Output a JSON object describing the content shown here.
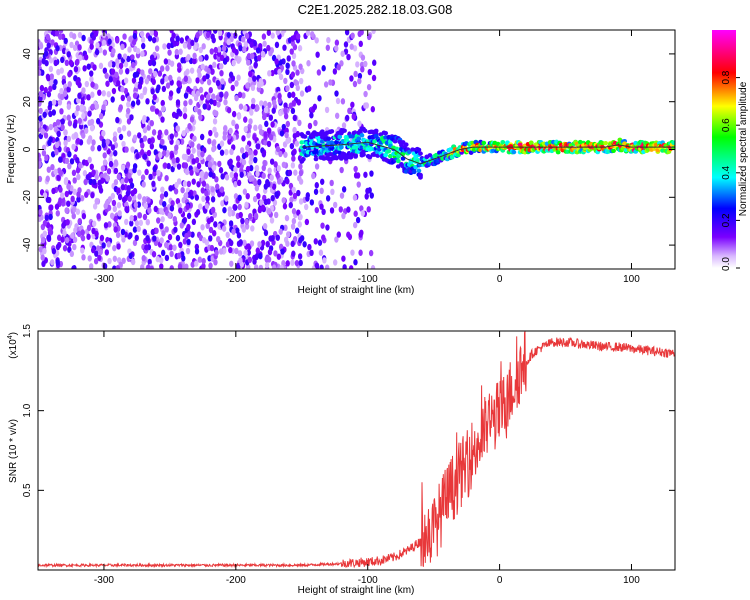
{
  "title": "C2E1.2025.282.18.03.G08",
  "chart_data": [
    {
      "type": "heatmap",
      "xlabel": "Height of straight line (km)",
      "ylabel": "Frequency (Hz)",
      "xlim": [
        -350,
        133
      ],
      "ylim": [
        -50,
        50
      ],
      "xticks": [
        -300,
        -200,
        -100,
        0,
        100
      ],
      "xtick_labels": [
        "-300",
        "-200",
        "-100",
        "0",
        "100"
      ],
      "yticks": [
        -40,
        -20,
        0,
        20,
        40
      ],
      "ytick_labels": [
        "-40",
        "-20",
        "0",
        "20",
        "40"
      ],
      "colorbar": {
        "label": "Normalized spectral amplitude",
        "range": [
          0,
          1
        ],
        "ticks": [
          0.0,
          0.2,
          0.4,
          0.6,
          0.8
        ],
        "tick_labels": [
          "0.0",
          "0.2",
          "0.4",
          "0.6",
          "0.8"
        ],
        "colors": [
          "#ffffff",
          "#7a00ff",
          "#0000ff",
          "#00ffff",
          "#00ff00",
          "#ffff00",
          "#ff0000",
          "#ff00ff"
        ]
      },
      "dominant_frequency_trace": {
        "x": [
          -150,
          -120,
          -100,
          -80,
          -70,
          -60,
          -50,
          -40,
          -30,
          -20,
          0,
          20,
          50,
          80,
          90,
          100,
          133
        ],
        "y": [
          1,
          2,
          3,
          0,
          -4,
          -6,
          -4,
          -2,
          0,
          1,
          1,
          1,
          1,
          1,
          2,
          1,
          1
        ]
      },
      "noise_region_xmax": -150
    },
    {
      "type": "line",
      "xlabel": "Height of straight line (km)",
      "ylabel": "SNR (10 * v/v)",
      "scale_label": "(x10",
      "scale_exponent": "4",
      "scale_close": ")",
      "xlim": [
        -350,
        133
      ],
      "ylim": [
        0,
        1.5
      ],
      "xticks": [
        -300,
        -200,
        -100,
        0,
        100
      ],
      "xtick_labels": [
        "-300",
        "-200",
        "-100",
        "0",
        "100"
      ],
      "yticks": [
        0.5,
        1.0,
        1.5
      ],
      "ytick_labels": [
        "0.5",
        "1.0",
        "1.5"
      ],
      "series": [
        {
          "color": "#e8383a",
          "x": [
            -350,
            -300,
            -250,
            -200,
            -150,
            -120,
            -100,
            -90,
            -80,
            -70,
            -60,
            -50,
            -45,
            -40,
            -35,
            -30,
            -25,
            -20,
            -15,
            -10,
            -5,
            0,
            5,
            10,
            15,
            20,
            25,
            30,
            35,
            40,
            50,
            60,
            70,
            80,
            90,
            100,
            110,
            120,
            133
          ],
          "y": [
            0.03,
            0.03,
            0.03,
            0.03,
            0.03,
            0.04,
            0.05,
            0.06,
            0.08,
            0.12,
            0.18,
            0.25,
            0.35,
            0.45,
            0.52,
            0.6,
            0.65,
            0.75,
            0.8,
            0.9,
            0.95,
            0.98,
            1.05,
            1.15,
            1.25,
            1.3,
            1.36,
            1.39,
            1.41,
            1.43,
            1.43,
            1.42,
            1.41,
            1.4,
            1.4,
            1.39,
            1.38,
            1.37,
            1.36
          ]
        }
      ]
    }
  ]
}
